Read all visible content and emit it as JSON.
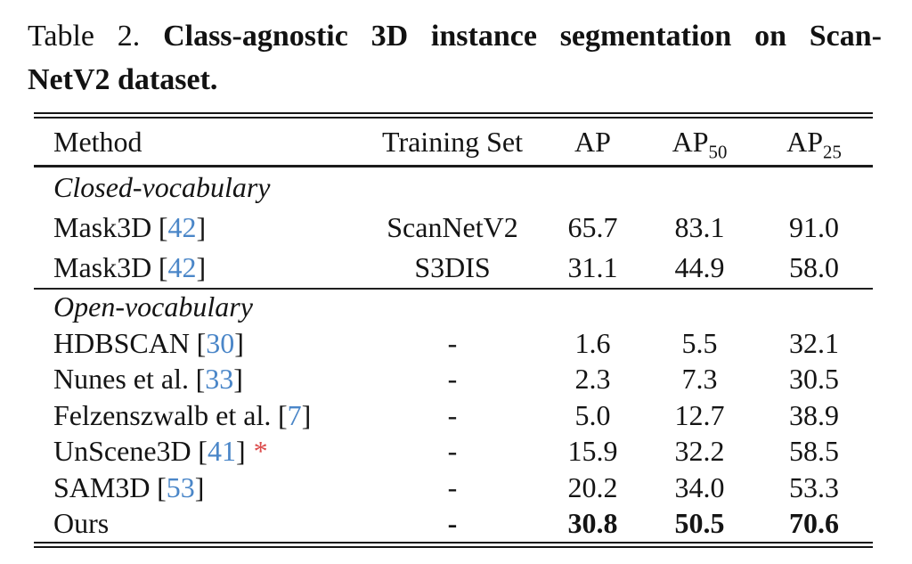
{
  "caption": {
    "label": "Table 2.",
    "title_line1": "Class-agnostic 3D instance segmentation on Scan-",
    "title_line2": "NetV2 dataset."
  },
  "table": {
    "columns": {
      "method": "Method",
      "training": "Training Set",
      "ap": "AP",
      "ap50_base": "AP",
      "ap50_sub": "50",
      "ap25_base": "AP",
      "ap25_sub": "25"
    },
    "colors": {
      "citation_blue": "#4a86c8",
      "star_red": "#dc4b4b"
    },
    "sections": [
      {
        "heading": "Closed-vocabulary",
        "rows": [
          {
            "method": "Mask3D",
            "open": "[",
            "cite": "42",
            "close": "]",
            "training": "ScanNetV2",
            "ap": "65.7",
            "ap50": "83.1",
            "ap25": "91.0"
          },
          {
            "method": "Mask3D",
            "open": "[",
            "cite": "42",
            "close": "]",
            "training": "S3DIS",
            "ap": "31.1",
            "ap50": "44.9",
            "ap25": "58.0"
          }
        ]
      },
      {
        "heading": "Open-vocabulary",
        "rows": [
          {
            "method": "HDBSCAN",
            "open": "[",
            "cite": "30",
            "close": "]",
            "training": "-",
            "ap": "1.6",
            "ap50": "5.5",
            "ap25": "32.1"
          },
          {
            "method": "Nunes et al.",
            "open": "[",
            "cite": "33",
            "close": "]",
            "training": "-",
            "ap": "2.3",
            "ap50": "7.3",
            "ap25": "30.5"
          },
          {
            "method": "Felzenszwalb et al.",
            "open": "[",
            "cite": "7",
            "close": "]",
            "training": "-",
            "ap": "5.0",
            "ap50": "12.7",
            "ap25": "38.9"
          },
          {
            "method": "UnScene3D",
            "open": "[",
            "cite": "41",
            "close": "]",
            "star": "*",
            "training": "-",
            "ap": "15.9",
            "ap50": "32.2",
            "ap25": "58.5"
          },
          {
            "method": "SAM3D",
            "open": "[",
            "cite": "53",
            "close": "]",
            "training": "-",
            "ap": "20.2",
            "ap50": "34.0",
            "ap25": "53.3"
          },
          {
            "method": "Ours",
            "training": "-",
            "ap": "30.8",
            "ap50": "50.5",
            "ap25": "70.6",
            "bold_values": true
          }
        ]
      }
    ]
  }
}
